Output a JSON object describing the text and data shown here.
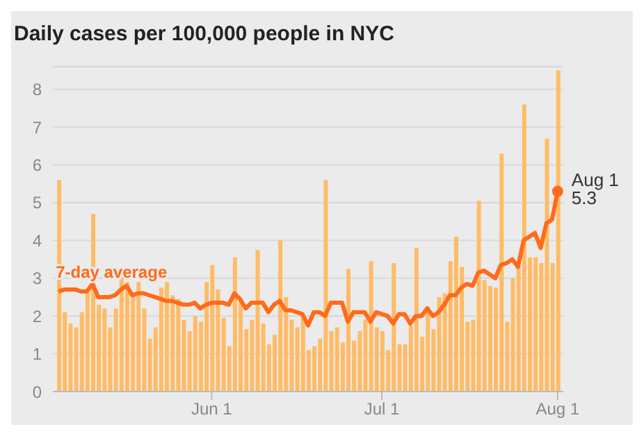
{
  "chart_data": {
    "type": "bar",
    "title": "Daily cases per 100,000 people in NYC",
    "x": [
      "--05-05",
      "--05-06",
      "--05-07",
      "--05-08",
      "--05-09",
      "--05-10",
      "--05-11",
      "--05-12",
      "--05-13",
      "--05-14",
      "--05-15",
      "--05-16",
      "--05-17",
      "--05-18",
      "--05-19",
      "--05-20",
      "--05-21",
      "--05-22",
      "--05-23",
      "--05-24",
      "--05-25",
      "--05-26",
      "--05-27",
      "--05-28",
      "--05-29",
      "--05-30",
      "--05-31",
      "--06-01",
      "--06-02",
      "--06-03",
      "--06-04",
      "--06-05",
      "--06-06",
      "--06-07",
      "--06-08",
      "--06-09",
      "--06-10",
      "--06-11",
      "--06-12",
      "--06-13",
      "--06-14",
      "--06-15",
      "--06-16",
      "--06-17",
      "--06-18",
      "--06-19",
      "--06-20",
      "--06-21",
      "--06-22",
      "--06-23",
      "--06-24",
      "--06-25",
      "--06-26",
      "--06-27",
      "--06-28",
      "--06-29",
      "--06-30",
      "--07-01",
      "--07-02",
      "--07-03",
      "--07-04",
      "--07-05",
      "--07-06",
      "--07-07",
      "--07-08",
      "--07-09",
      "--07-10",
      "--07-11",
      "--07-12",
      "--07-13",
      "--07-14",
      "--07-15",
      "--07-16",
      "--07-17",
      "--07-18",
      "--07-19",
      "--07-20",
      "--07-21",
      "--07-22",
      "--07-23",
      "--07-24",
      "--07-25",
      "--07-26",
      "--07-27",
      "--07-28",
      "--07-29",
      "--07-30",
      "--07-31",
      "--08-01"
    ],
    "series": [
      {
        "color": "#ffbb66",
        "values": [
          5.6,
          2.1,
          1.8,
          1.7,
          2.1,
          2.6,
          4.7,
          2.3,
          2.2,
          1.7,
          2.2,
          3.3,
          2.9,
          2.6,
          2.9,
          2.2,
          1.4,
          1.7,
          2.75,
          2.9,
          2.55,
          2.45,
          1.9,
          1.6,
          2.0,
          1.85,
          2.9,
          3.35,
          2.7,
          1.95,
          1.2,
          3.55,
          2.45,
          1.65,
          1.9,
          3.75,
          1.8,
          1.25,
          1.5,
          4.0,
          2.5,
          1.9,
          1.7,
          2.0,
          1.1,
          1.2,
          1.4,
          5.6,
          1.6,
          1.7,
          1.3,
          3.25,
          1.35,
          1.6,
          1.9,
          3.45,
          1.7,
          1.6,
          1.1,
          3.4,
          1.25,
          1.25,
          1.75,
          3.8,
          1.45,
          2.25,
          1.65,
          2.5,
          2.6,
          3.45,
          4.1,
          3.3,
          1.85,
          1.9,
          5.05,
          2.95,
          2.8,
          2.75,
          6.3,
          1.85,
          3.0,
          3.3,
          7.6,
          3.55,
          3.55,
          3.4,
          6.7,
          3.4,
          8.5
        ]
      },
      {
        "type": "line",
        "name": "7-day average",
        "color": "#ff6b1a",
        "values": [
          2.65,
          2.7,
          2.7,
          2.7,
          2.65,
          2.65,
          2.85,
          2.5,
          2.5,
          2.5,
          2.55,
          2.7,
          2.8,
          2.55,
          2.6,
          2.6,
          2.55,
          2.5,
          2.45,
          2.4,
          2.4,
          2.35,
          2.3,
          2.3,
          2.35,
          2.2,
          2.3,
          2.35,
          2.35,
          2.35,
          2.3,
          2.6,
          2.45,
          2.2,
          2.35,
          2.35,
          2.35,
          2.1,
          2.3,
          2.4,
          2.15,
          2.15,
          2.1,
          2.05,
          1.75,
          2.1,
          2.1,
          2.0,
          2.35,
          2.35,
          2.35,
          1.85,
          2.1,
          2.1,
          2.1,
          1.85,
          2.1,
          2.05,
          2.0,
          1.8,
          2.05,
          2.05,
          1.8,
          2.0,
          2.0,
          2.2,
          2.0,
          2.1,
          2.3,
          2.55,
          2.55,
          2.75,
          2.85,
          2.8,
          3.15,
          3.2,
          3.1,
          3.0,
          3.35,
          3.4,
          3.5,
          3.3,
          4.0,
          4.1,
          4.2,
          3.8,
          4.45,
          4.55,
          5.3
        ]
      }
    ],
    "xlim": [
      "--05-04",
      "--08-02"
    ],
    "xticks": [
      {
        "value": "--06-01",
        "label": "Jun 1"
      },
      {
        "value": "--07-01",
        "label": "Jul 1"
      },
      {
        "value": "--08-01",
        "label": "Aug 1"
      }
    ],
    "ylim": [
      0,
      8.6
    ],
    "yticks": [
      0,
      1,
      2,
      3,
      4,
      5,
      6,
      7,
      8
    ],
    "grid": "y",
    "legend": false,
    "marker": "none",
    "line_style": "solid",
    "annotations": [
      {
        "text": "Aug 1",
        "x": "--08-01",
        "y": 5.3
      },
      {
        "text": "5.3",
        "x": "--08-01",
        "y": 5.3
      }
    ]
  }
}
